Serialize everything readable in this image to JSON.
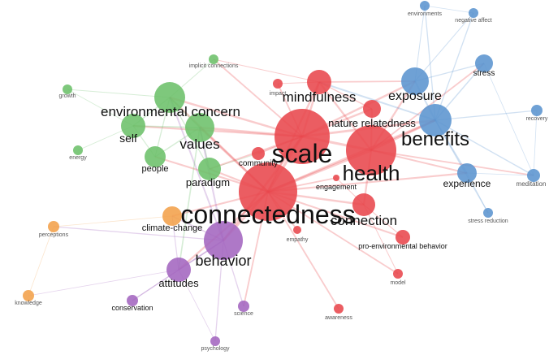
{
  "colors": {
    "red": "#e8474c",
    "blue": "#5b94cf",
    "green": "#6cc06a",
    "purple": "#a365bf",
    "orange": "#f2a04a"
  },
  "nodes": [
    {
      "id": "scale",
      "label": "scale",
      "cluster": "red",
      "weight": 10
    },
    {
      "id": "connectedness",
      "label": "connectedness",
      "cluster": "red",
      "weight": 10
    },
    {
      "id": "health",
      "label": "health",
      "cluster": "red",
      "weight": 9
    },
    {
      "id": "mindfulness",
      "label": "mindfulness",
      "cluster": "red",
      "weight": 5
    },
    {
      "id": "nature-relatedness",
      "label": "nature relatedness",
      "cluster": "red",
      "weight": 4
    },
    {
      "id": "impact",
      "label": "impact",
      "cluster": "red",
      "weight": 1
    },
    {
      "id": "community",
      "label": "community",
      "cluster": "red",
      "weight": 2
    },
    {
      "id": "engagement",
      "label": "engagement",
      "cluster": "red",
      "weight": 1
    },
    {
      "id": "connection",
      "label": "connection",
      "cluster": "red",
      "weight": 5
    },
    {
      "id": "empathy",
      "label": "empathy",
      "cluster": "red",
      "weight": 1
    },
    {
      "id": "pro-environmental-behavior",
      "label": "pro-environmental behavior",
      "cluster": "red",
      "weight": 2
    },
    {
      "id": "model",
      "label": "model",
      "cluster": "red",
      "weight": 1
    },
    {
      "id": "awareness",
      "label": "awareness",
      "cluster": "red",
      "weight": 1
    },
    {
      "id": "exposure",
      "label": "exposure",
      "cluster": "blue",
      "weight": 5
    },
    {
      "id": "benefits",
      "label": "benefits",
      "cluster": "blue",
      "weight": 7
    },
    {
      "id": "environments",
      "label": "environments",
      "cluster": "blue",
      "weight": 1
    },
    {
      "id": "negative-affect",
      "label": "negative affect",
      "cluster": "blue",
      "weight": 1
    },
    {
      "id": "stress",
      "label": "stress",
      "cluster": "blue",
      "weight": 2
    },
    {
      "id": "recovery",
      "label": "recovery",
      "cluster": "blue",
      "weight": 1
    },
    {
      "id": "experience",
      "label": "experience",
      "cluster": "blue",
      "weight": 3
    },
    {
      "id": "meditation",
      "label": "meditation",
      "cluster": "blue",
      "weight": 2
    },
    {
      "id": "stress-reduction",
      "label": "stress reduction",
      "cluster": "blue",
      "weight": 1
    },
    {
      "id": "environmental-concern",
      "label": "environmental concern",
      "cluster": "green",
      "weight": 5
    },
    {
      "id": "values",
      "label": "values",
      "cluster": "green",
      "weight": 6
    },
    {
      "id": "self",
      "label": "self",
      "cluster": "green",
      "weight": 4
    },
    {
      "id": "people",
      "label": "people",
      "cluster": "green",
      "weight": 3
    },
    {
      "id": "paradigm",
      "label": "paradigm",
      "cluster": "green",
      "weight": 3
    },
    {
      "id": "growth",
      "label": "growth",
      "cluster": "green",
      "weight": 1
    },
    {
      "id": "energy",
      "label": "energy",
      "cluster": "green",
      "weight": 1
    },
    {
      "id": "implicit-connections",
      "label": "implicit connections",
      "cluster": "green",
      "weight": 1
    },
    {
      "id": "behavior",
      "label": "behavior",
      "cluster": "purple",
      "weight": 7
    },
    {
      "id": "attitudes",
      "label": "attitudes",
      "cluster": "purple",
      "weight": 4
    },
    {
      "id": "conservation",
      "label": "conservation",
      "cluster": "purple",
      "weight": 2
    },
    {
      "id": "science",
      "label": "science",
      "cluster": "purple",
      "weight": 1
    },
    {
      "id": "psychology",
      "label": "psychology",
      "cluster": "purple",
      "weight": 1
    },
    {
      "id": "climate-change",
      "label": "climate-change",
      "cluster": "orange",
      "weight": 3
    },
    {
      "id": "perceptions",
      "label": "perceptions",
      "cluster": "orange",
      "weight": 1
    },
    {
      "id": "knowledge",
      "label": "knowledge",
      "cluster": "orange",
      "weight": 1
    }
  ],
  "links": [
    [
      "scale",
      "connectedness"
    ],
    [
      "scale",
      "health"
    ],
    [
      "scale",
      "mindfulness"
    ],
    [
      "scale",
      "nature-relatedness"
    ],
    [
      "scale",
      "benefits"
    ],
    [
      "scale",
      "values"
    ],
    [
      "scale",
      "environmental-concern"
    ],
    [
      "scale",
      "behavior"
    ],
    [
      "scale",
      "exposure"
    ],
    [
      "scale",
      "self"
    ],
    [
      "scale",
      "paradigm"
    ],
    [
      "scale",
      "community"
    ],
    [
      "connectedness",
      "health"
    ],
    [
      "connectedness",
      "behavior"
    ],
    [
      "connectedness",
      "attitudes"
    ],
    [
      "connectedness",
      "climate-change"
    ],
    [
      "connectedness",
      "values"
    ],
    [
      "connectedness",
      "connection"
    ],
    [
      "connectedness",
      "benefits"
    ],
    [
      "connectedness",
      "empathy"
    ],
    [
      "connectedness",
      "pro-environmental-behavior"
    ],
    [
      "connectedness",
      "model"
    ],
    [
      "connectedness",
      "awareness"
    ],
    [
      "connectedness",
      "paradigm"
    ],
    [
      "connectedness",
      "people"
    ],
    [
      "connectedness",
      "environmental-concern"
    ],
    [
      "connectedness",
      "mindfulness"
    ],
    [
      "connectedness",
      "engagement"
    ],
    [
      "connectedness",
      "science"
    ],
    [
      "connectedness",
      "experience"
    ],
    [
      "health",
      "benefits"
    ],
    [
      "health",
      "exposure"
    ],
    [
      "health",
      "experience"
    ],
    [
      "health",
      "mindfulness"
    ],
    [
      "health",
      "connection"
    ],
    [
      "health",
      "stress"
    ],
    [
      "health",
      "meditation"
    ],
    [
      "benefits",
      "exposure"
    ],
    [
      "benefits",
      "stress"
    ],
    [
      "benefits",
      "experience"
    ],
    [
      "benefits",
      "meditation"
    ],
    [
      "benefits",
      "recovery"
    ],
    [
      "benefits",
      "environments"
    ],
    [
      "benefits",
      "negative-affect"
    ],
    [
      "benefits",
      "stress-reduction"
    ],
    [
      "benefits",
      "mindfulness"
    ],
    [
      "exposure",
      "environments"
    ],
    [
      "exposure",
      "negative-affect"
    ],
    [
      "exposure",
      "stress"
    ],
    [
      "experience",
      "meditation"
    ],
    [
      "experience",
      "stress-reduction"
    ],
    [
      "meditation",
      "recovery"
    ],
    [
      "meditation",
      "stress"
    ],
    [
      "environments",
      "negative-affect"
    ],
    [
      "environmental-concern",
      "values"
    ],
    [
      "environmental-concern",
      "self"
    ],
    [
      "environmental-concern",
      "growth"
    ],
    [
      "environmental-concern",
      "implicit-connections"
    ],
    [
      "environmental-concern",
      "people"
    ],
    [
      "environmental-concern",
      "paradigm"
    ],
    [
      "environmental-concern",
      "behavior"
    ],
    [
      "values",
      "self"
    ],
    [
      "values",
      "people"
    ],
    [
      "values",
      "paradigm"
    ],
    [
      "values",
      "behavior"
    ],
    [
      "values",
      "attitudes"
    ],
    [
      "self",
      "energy"
    ],
    [
      "self",
      "growth"
    ],
    [
      "self",
      "people"
    ],
    [
      "implicit-connections",
      "mindfulness"
    ],
    [
      "implicit-connections",
      "scale"
    ],
    [
      "behavior",
      "attitudes"
    ],
    [
      "behavior",
      "climate-change"
    ],
    [
      "behavior",
      "conservation"
    ],
    [
      "behavior",
      "science"
    ],
    [
      "behavior",
      "psychology"
    ],
    [
      "behavior",
      "perceptions"
    ],
    [
      "attitudes",
      "knowledge"
    ],
    [
      "attitudes",
      "conservation"
    ],
    [
      "attitudes",
      "psychology"
    ],
    [
      "climate-change",
      "perceptions"
    ],
    [
      "perceptions",
      "knowledge"
    ],
    [
      "climate-change",
      "attitudes"
    ],
    [
      "mindfulness",
      "nature-relatedness"
    ],
    [
      "mindfulness",
      "exposure"
    ],
    [
      "nature-relatedness",
      "health"
    ],
    [
      "connection",
      "pro-environmental-behavior"
    ],
    [
      "connection",
      "model"
    ],
    [
      "connection",
      "engagement"
    ],
    [
      "impact",
      "scale"
    ],
    [
      "impact",
      "mindfulness"
    ],
    [
      "community",
      "paradigm"
    ]
  ]
}
